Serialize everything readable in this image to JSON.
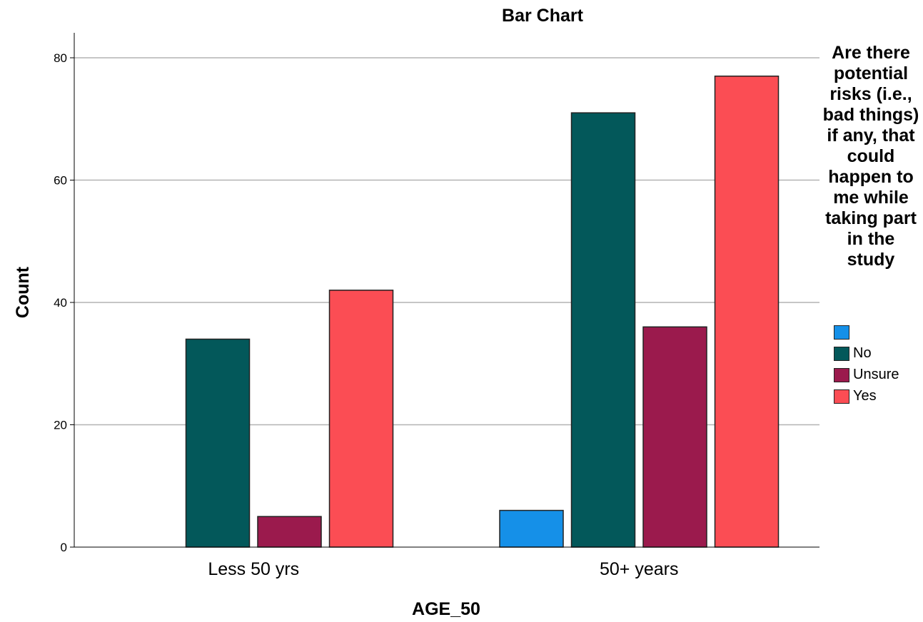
{
  "chart_data": {
    "type": "bar",
    "title": "Bar Chart",
    "xlabel": "AGE_50",
    "ylabel": "Count",
    "ylim": [
      0,
      84
    ],
    "yticks": [
      0,
      20,
      40,
      60,
      80
    ],
    "grid": true,
    "legend_position": "right",
    "legend_title": "Are there potential risks (i.e., bad things) if any, that could happen to me while taking part in the study",
    "categories": [
      "Less 50 yrs",
      "50+ years"
    ],
    "series": [
      {
        "name": "",
        "color": "#1590e8",
        "values": [
          0,
          6
        ]
      },
      {
        "name": "No",
        "color": "#03585a",
        "values": [
          34,
          71
        ]
      },
      {
        "name": "Unsure",
        "color": "#9b1a4d",
        "values": [
          5,
          36
        ]
      },
      {
        "name": "Yes",
        "color": "#fb4d54",
        "values": [
          42,
          77
        ]
      }
    ]
  }
}
